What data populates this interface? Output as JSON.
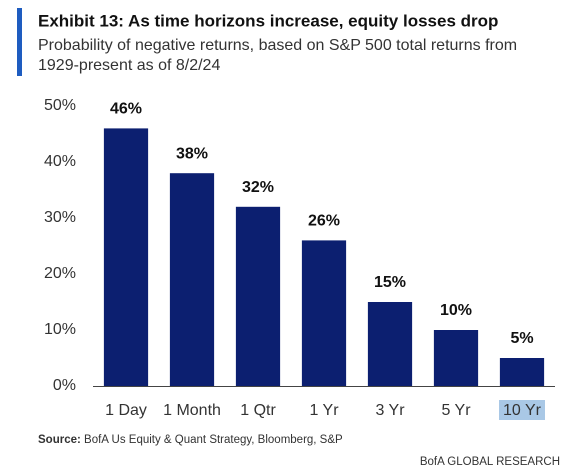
{
  "chart_data": {
    "type": "bar",
    "title": "Exhibit 13: As time horizons increase, equity losses drop",
    "subtitle": [
      "Probability of negative returns, based on S&P 500 total returns from",
      "1929-present as of 8/2/24"
    ],
    "categories": [
      "1 Day",
      "1 Month",
      "1 Qtr",
      "1 Yr",
      "3 Yr",
      "5 Yr",
      "10 Yr"
    ],
    "values": [
      46,
      38,
      32,
      26,
      15,
      10,
      5
    ],
    "value_labels": [
      "46%",
      "38%",
      "32%",
      "26%",
      "15%",
      "10%",
      "5%"
    ],
    "color": "#0c1f70",
    "ylim": [
      0,
      50
    ],
    "yticks": [
      {
        "value": 0,
        "label": "0%"
      },
      {
        "value": 10,
        "label": "10%"
      },
      {
        "value": 20,
        "label": "20%"
      },
      {
        "value": 30,
        "label": "30%"
      },
      {
        "value": 40,
        "label": "40%"
      },
      {
        "value": 50,
        "label": "50%"
      }
    ],
    "grid": false,
    "source_label": "Source:",
    "source": "BofA Us Equity & Quant Strategy, Bloomberg, S&P",
    "footer": "BofA GLOBAL RESEARCH"
  }
}
